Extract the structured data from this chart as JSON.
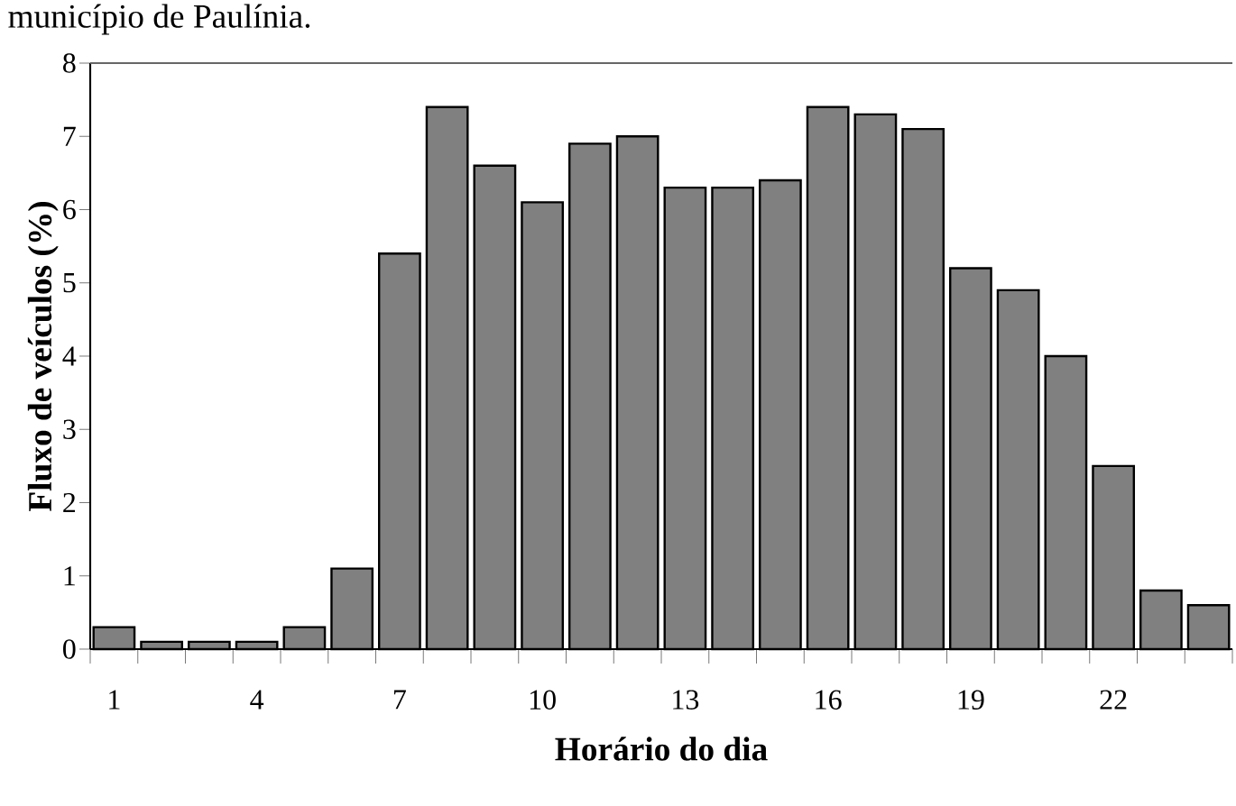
{
  "chart_data": {
    "type": "bar",
    "title": "município de Paulínia.",
    "xlabel": "Horário do dia",
    "ylabel": "Fluxo de veículos (%)",
    "categories": [
      "1",
      null,
      null,
      "4",
      null,
      null,
      "7",
      null,
      null,
      "10",
      null,
      null,
      "13",
      null,
      null,
      "16",
      null,
      null,
      "19",
      null,
      null,
      "22",
      null,
      null
    ],
    "values": [
      0.3,
      0.1,
      0.1,
      0.1,
      0.3,
      1.1,
      5.4,
      7.4,
      6.6,
      6.1,
      6.9,
      7.0,
      6.3,
      6.3,
      6.4,
      7.4,
      7.3,
      7.1,
      5.2,
      4.9,
      4.0,
      2.5,
      0.8,
      0.6
    ],
    "color": "#808080",
    "ylim": [
      0,
      8
    ],
    "yticks": [
      0,
      1,
      2,
      3,
      4,
      5,
      6,
      7,
      8
    ],
    "grid": false
  }
}
